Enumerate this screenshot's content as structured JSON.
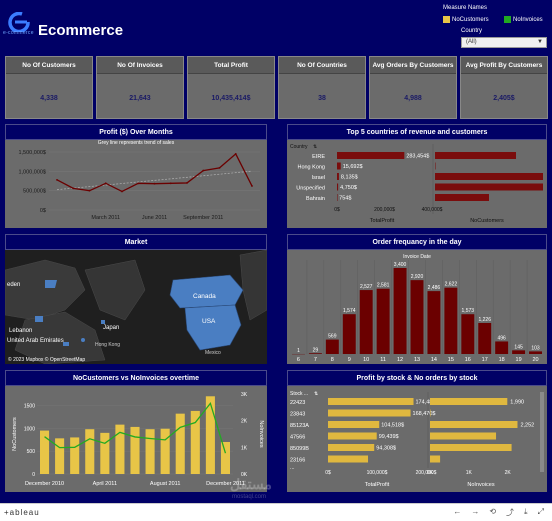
{
  "header": {
    "logo_text": "e-commerce",
    "title": "Ecommerce",
    "measure_names_label": "Measure Names",
    "legend": [
      {
        "label": "NoCustomers",
        "color": "#e8c547"
      },
      {
        "label": "NoInvoices",
        "color": "#22aa22"
      }
    ],
    "country_label": "Country",
    "country_value": "(All)"
  },
  "kpis": [
    {
      "label": "No Of Customers",
      "value": "4,338"
    },
    {
      "label": "No Of Invoices",
      "value": "21,643"
    },
    {
      "label": "Total Profit",
      "value": "10,435,414$"
    },
    {
      "label": "No Of Countries",
      "value": "38"
    },
    {
      "label": "Avg Orders By Customers",
      "value": "4,988"
    },
    {
      "label": "Avg Profit By Customers",
      "value": "2,405$"
    }
  ],
  "panels": {
    "profit": {
      "title": "Profit ($) Over Months",
      "subtitle": "Grey line represents trend of sales"
    },
    "top5": {
      "title": "Top 5 countries of revenue and customers",
      "dim_header": "Country",
      "x1_label": "TotalProfit",
      "x2_label": "NoCustomers"
    },
    "market": {
      "title": "Market",
      "attribution": "© 2023 Mapbox  © OpenStreetMap"
    },
    "orders": {
      "title": "Order frequancy in the day",
      "axis_header": "Invoice Date"
    },
    "overtime": {
      "title": "NoCustomers vs NoInvoices overtime",
      "ylabel_left": "NoCustomers",
      "ylabel_right": "NoInvoices"
    },
    "stock": {
      "title": "Profit by stock & No orders by stock",
      "dim_header": "Stock ...",
      "x1_label": "TotalProfit",
      "x2_label": "NoInvoices"
    }
  },
  "map_labels": [
    "Canada",
    "USA",
    "Japan",
    "Lebanon",
    "United Arab Emirates",
    "eden",
    "Hong Kong",
    "Mexico"
  ],
  "footer": {
    "brand": "+ableau",
    "watermark": "مستقل",
    "watermark_sub": "mostaql.com"
  },
  "chart_data": [
    {
      "type": "line",
      "title": "Profit ($) Over Months",
      "x": [
        "Dec 2010",
        "Jan 2011",
        "Feb 2011",
        "Mar 2011",
        "Apr 2011",
        "May 2011",
        "Jun 2011",
        "Jul 2011",
        "Aug 2011",
        "Sep 2011",
        "Oct 2011",
        "Nov 2011",
        "Dec 2011"
      ],
      "x_tick_labels": [
        "March 2011",
        "June 2011",
        "September 2011"
      ],
      "series": [
        {
          "values": [
            780000,
            560000,
            500000,
            690000,
            480000,
            690000,
            680000,
            690000,
            700000,
            1020000,
            1090000,
            1450000,
            620000
          ]
        }
      ],
      "y_tick_labels": [
        "0$",
        "500,000$",
        "1,000,000$",
        "1,500,000$"
      ],
      "ylim": [
        0,
        1500000
      ]
    },
    {
      "type": "bar",
      "title": "Top 5 countries of revenue and customers",
      "categories": [
        "EIRE",
        "Hong Kong",
        "Israel",
        "Unspecified",
        "Bahrain"
      ],
      "series": [
        {
          "name": "TotalProfit",
          "values": [
            283454,
            15692,
            8135,
            4750,
            754
          ],
          "labels": [
            "283,454$",
            "15,692$",
            "8,135$",
            "4,750$",
            "754$"
          ]
        },
        {
          "name": "NoCustomers",
          "values": [
            3,
            0,
            4,
            4,
            2
          ]
        }
      ],
      "x1_ticks": [
        "0$",
        "200,000$",
        "400,000$"
      ]
    },
    {
      "type": "bar",
      "title": "Order frequancy in the day",
      "categories": [
        "6",
        "7",
        "8",
        "9",
        "10",
        "11",
        "12",
        "13",
        "14",
        "15",
        "16",
        "17",
        "18",
        "19",
        "20"
      ],
      "values": [
        1,
        29,
        569,
        1574,
        2527,
        2581,
        3400,
        2920,
        2486,
        2622,
        1573,
        1226,
        496,
        145,
        103
      ]
    },
    {
      "type": "bar",
      "title": "NoCustomers vs NoInvoices overtime",
      "categories": [
        "Dec 2010",
        "Jan 2011",
        "Feb 2011",
        "Mar 2011",
        "Apr 2011",
        "May 2011",
        "Jun 2011",
        "Jul 2011",
        "Aug 2011",
        "Sep 2011",
        "Oct 2011",
        "Nov 2011",
        "Dec 2011"
      ],
      "x_tick_labels": [
        "December 2010",
        "April 2011",
        "August 2011",
        "December 2011"
      ],
      "series": [
        {
          "name": "NoCustomers",
          "values": [
            950,
            780,
            800,
            980,
            900,
            1080,
            1030,
            980,
            990,
            1320,
            1380,
            1700,
            700
          ]
        },
        {
          "name": "NoInvoices",
          "values": [
            1400,
            990,
            1000,
            1320,
            1150,
            1560,
            1390,
            1330,
            1280,
            1750,
            1930,
            2650,
            780
          ]
        }
      ],
      "y_left_ticks": [
        "0",
        "500",
        "1000",
        "1500"
      ],
      "y_right_ticks": [
        "0K",
        "1K",
        "2K",
        "3K"
      ]
    },
    {
      "type": "bar",
      "title": "Profit by stock & No orders by stock",
      "categories": [
        "22423",
        "23843",
        "85123A",
        "47566",
        "85099B",
        "23166"
      ],
      "series": [
        {
          "name": "TotalProfit",
          "values": [
            174485,
            168470,
            104518,
            99439,
            94308,
            81700
          ],
          "labels": [
            "174,485$",
            "168,470$",
            "104,518$",
            "99,439$",
            "94,308$",
            ""
          ]
        },
        {
          "name": "NoInvoices",
          "values": [
            1990,
            1,
            2252,
            1700,
            2100,
            260
          ],
          "labels": [
            "1,990",
            "",
            "2,252",
            "",
            "",
            ""
          ]
        }
      ],
      "x1_ticks": [
        "0$",
        "100,000$",
        "200,000$"
      ],
      "x2_ticks": [
        "0K",
        "1K",
        "2K"
      ]
    }
  ]
}
